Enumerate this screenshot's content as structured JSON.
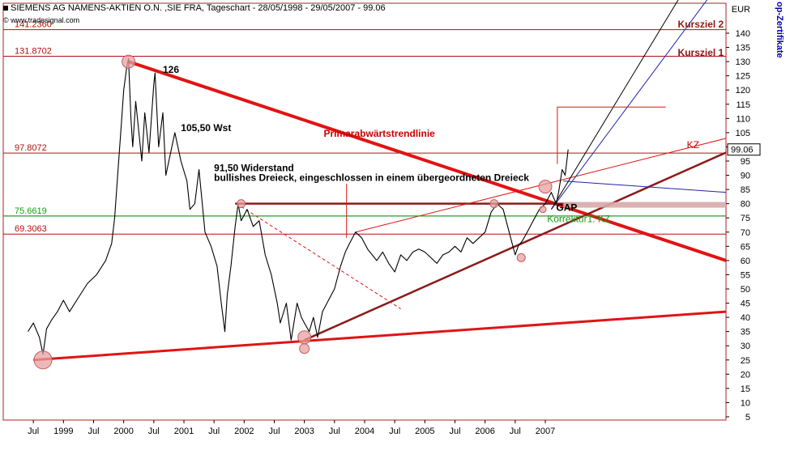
{
  "header": {
    "title": "SIEMENS AG NAMENS-AKTIEN O.N. ,SIE FRA, Tageschart - 28/05/1998 - 29/05/2007 - 99.06",
    "watermark": "© www.tradesignal.com"
  },
  "side_banner": "op-Zertifikate",
  "colors": {
    "price": "#000000",
    "trendline": "#e01414",
    "support": "#8b1a1a",
    "level": "#b01010",
    "green_level": "#1a9c1a",
    "blue_fan": "#2222aa",
    "grid": "#f2caca",
    "volume": "#cccccc"
  },
  "chart_data": {
    "type": "line",
    "title": "SIEMENS AG NAMENS-AKTIEN O.N. ,SIE FRA, Tageschart - 28/05/1998 - 29/05/2007 - 99.06",
    "ylabel": "EUR",
    "ylim": [
      5,
      145
    ],
    "y_scale": "linear",
    "y_ticks": [
      5,
      10,
      15,
      20,
      25,
      30,
      35,
      40,
      45,
      50,
      55,
      60,
      65,
      70,
      75,
      80,
      85,
      90,
      95,
      100,
      105,
      110,
      115,
      120,
      125,
      130,
      135,
      140
    ],
    "x_ticks": [
      "Jul",
      "1999",
      "Jul",
      "2000",
      "Jul",
      "2001",
      "Jul",
      "2002",
      "Jul",
      "2003",
      "Jul",
      "2004",
      "Jul",
      "2005",
      "Jul",
      "2006",
      "Jul",
      "2007"
    ],
    "last_price": "99.06",
    "price_series": [
      [
        1998.41,
        35
      ],
      [
        1998.5,
        38
      ],
      [
        1998.6,
        33
      ],
      [
        1998.66,
        27
      ],
      [
        1998.72,
        36
      ],
      [
        1998.8,
        39
      ],
      [
        1998.9,
        42
      ],
      [
        1999.0,
        46
      ],
      [
        1999.1,
        42
      ],
      [
        1999.25,
        47
      ],
      [
        1999.4,
        52
      ],
      [
        1999.55,
        55
      ],
      [
        1999.7,
        60
      ],
      [
        1999.8,
        66
      ],
      [
        1999.85,
        75
      ],
      [
        1999.9,
        90
      ],
      [
        1999.95,
        105
      ],
      [
        2000.0,
        120
      ],
      [
        2000.05,
        128
      ],
      [
        2000.08,
        131
      ],
      [
        2000.12,
        110
      ],
      [
        2000.15,
        100
      ],
      [
        2000.2,
        116
      ],
      [
        2000.3,
        95
      ],
      [
        2000.35,
        112
      ],
      [
        2000.42,
        98
      ],
      [
        2000.5,
        122
      ],
      [
        2000.52,
        126
      ],
      [
        2000.58,
        100
      ],
      [
        2000.65,
        112
      ],
      [
        2000.7,
        90
      ],
      [
        2000.78,
        98
      ],
      [
        2000.85,
        105
      ],
      [
        2000.95,
        95
      ],
      [
        2001.05,
        88
      ],
      [
        2001.1,
        78
      ],
      [
        2001.18,
        80
      ],
      [
        2001.25,
        92
      ],
      [
        2001.35,
        70
      ],
      [
        2001.45,
        65
      ],
      [
        2001.55,
        58
      ],
      [
        2001.62,
        45
      ],
      [
        2001.68,
        35
      ],
      [
        2001.72,
        48
      ],
      [
        2001.78,
        58
      ],
      [
        2001.85,
        72
      ],
      [
        2001.9,
        80
      ],
      [
        2001.95,
        74
      ],
      [
        2002.05,
        78
      ],
      [
        2002.15,
        72
      ],
      [
        2002.25,
        74
      ],
      [
        2002.35,
        62
      ],
      [
        2002.45,
        55
      ],
      [
        2002.55,
        45
      ],
      [
        2002.6,
        38
      ],
      [
        2002.7,
        45
      ],
      [
        2002.78,
        32
      ],
      [
        2002.88,
        45
      ],
      [
        2002.95,
        40
      ],
      [
        2003.0,
        38
      ],
      [
        2003.08,
        35
      ],
      [
        2003.15,
        40
      ],
      [
        2003.22,
        33
      ],
      [
        2003.3,
        42
      ],
      [
        2003.4,
        46
      ],
      [
        2003.5,
        50
      ],
      [
        2003.6,
        58
      ],
      [
        2003.68,
        63
      ],
      [
        2003.75,
        66
      ],
      [
        2003.85,
        70
      ],
      [
        2003.95,
        68
      ],
      [
        2004.05,
        64
      ],
      [
        2004.2,
        60
      ],
      [
        2004.3,
        63
      ],
      [
        2004.4,
        59
      ],
      [
        2004.5,
        56
      ],
      [
        2004.6,
        62
      ],
      [
        2004.7,
        60
      ],
      [
        2004.8,
        63
      ],
      [
        2004.9,
        64
      ],
      [
        2005.0,
        63
      ],
      [
        2005.1,
        61
      ],
      [
        2005.2,
        59
      ],
      [
        2005.3,
        62
      ],
      [
        2005.4,
        63
      ],
      [
        2005.5,
        65
      ],
      [
        2005.6,
        63
      ],
      [
        2005.7,
        68
      ],
      [
        2005.8,
        66
      ],
      [
        2005.9,
        68
      ],
      [
        2006.0,
        70
      ],
      [
        2006.1,
        77
      ],
      [
        2006.2,
        80
      ],
      [
        2006.3,
        78
      ],
      [
        2006.4,
        70
      ],
      [
        2006.5,
        62
      ],
      [
        2006.55,
        65
      ],
      [
        2006.62,
        67
      ],
      [
        2006.7,
        70
      ],
      [
        2006.8,
        74
      ],
      [
        2006.9,
        78
      ],
      [
        2007.0,
        80
      ],
      [
        2007.1,
        84
      ],
      [
        2007.18,
        80
      ],
      [
        2007.22,
        84
      ],
      [
        2007.28,
        92
      ],
      [
        2007.33,
        90
      ],
      [
        2007.38,
        99.06
      ]
    ],
    "lines": [
      {
        "name": "Primarabwärtstrendlinie",
        "color": "#e01414",
        "width": 4,
        "points": [
          [
            2000.08,
            130
          ],
          [
            2010.0,
            60
          ]
        ]
      },
      {
        "name": "Lower support",
        "color": "#e01414",
        "width": 3,
        "points": [
          [
            1998.5,
            25
          ],
          [
            2010.0,
            42
          ]
        ]
      },
      {
        "name": "Rising support",
        "color": "#8b1a1a",
        "width": 2.5,
        "points": [
          [
            2003.0,
            32
          ],
          [
            2010.0,
            98
          ]
        ]
      },
      {
        "name": "Dreieck top",
        "color": "#8b1a1a",
        "width": 2.5,
        "points": [
          [
            2001.85,
            80
          ],
          [
            2007.5,
            80
          ]
        ]
      },
      {
        "name": "Channel upper",
        "color": "#e01414",
        "width": 1,
        "points": [
          [
            2003.85,
            70
          ],
          [
            2010.0,
            103
          ]
        ]
      },
      {
        "name": "Blue fan 1",
        "color": "#2222aa",
        "width": 1,
        "points": [
          [
            2007.3,
            88
          ],
          [
            2010.0,
            84
          ]
        ]
      },
      {
        "name": "Blue fan 2",
        "color": "#2222aa",
        "width": 1,
        "points": [
          [
            2007.1,
            78
          ],
          [
            2009.8,
            155
          ]
        ]
      },
      {
        "name": "Black fan",
        "color": "#000000",
        "width": 1,
        "points": [
          [
            2007.1,
            78
          ],
          [
            2009.3,
            155
          ]
        ]
      },
      {
        "name": "Dashed downtrend",
        "color": "#e01414",
        "width": 1,
        "dash": true,
        "points": [
          [
            2001.95,
            79
          ],
          [
            2004.6,
            43
          ]
        ]
      },
      {
        "name": "Target bracket",
        "color": "#e01414",
        "width": 1,
        "points": [
          [
            2007.2,
            94
          ],
          [
            2007.2,
            114
          ],
          [
            2009.0,
            114
          ]
        ]
      },
      {
        "name": "Vertical marker",
        "color": "#e01414",
        "width": 1,
        "points": [
          [
            2003.7,
            68
          ],
          [
            2003.7,
            87
          ]
        ]
      },
      {
        "name": "Green level",
        "color": "#1a9c1a",
        "width": 1,
        "points": [
          [
            1998.0,
            75.6619
          ],
          [
            2010.0,
            75.6619
          ]
        ]
      }
    ],
    "horizontal_levels": [
      {
        "label": "141.2360",
        "value": 141.236
      },
      {
        "label": "131.8702",
        "value": 131.8702
      },
      {
        "label": "97.8072",
        "value": 97.8072
      },
      {
        "label": "75.6619",
        "value": 75.6619
      },
      {
        "label": "69.3063",
        "value": 69.3063
      }
    ],
    "markers": [
      {
        "x": 1998.66,
        "y": 25,
        "r": 11
      },
      {
        "x": 2000.08,
        "y": 130,
        "r": 8
      },
      {
        "x": 2001.95,
        "y": 80,
        "r": 5
      },
      {
        "x": 2003.0,
        "y": 33,
        "r": 8
      },
      {
        "x": 2003.0,
        "y": 29,
        "r": 6
      },
      {
        "x": 2006.15,
        "y": 80,
        "r": 5
      },
      {
        "x": 2006.6,
        "y": 61,
        "r": 5
      },
      {
        "x": 2007.0,
        "y": 86,
        "r": 8
      },
      {
        "x": 2006.96,
        "y": 78,
        "r": 4
      }
    ],
    "annotations": [
      {
        "text": "126",
        "x": 2000.65,
        "y": 126,
        "color": "#000000",
        "bold": true
      },
      {
        "text": "105,50 Wst",
        "x": 2000.95,
        "y": 105.5,
        "color": "#000000",
        "bold": true
      },
      {
        "text": "91,50 Widerstand",
        "x": 2001.5,
        "y": 91.5,
        "color": "#000000",
        "bold": true
      },
      {
        "text": "bullishes Dreieck, eingeschlossen in einem übergeordneten Dreieck",
        "x": 2001.5,
        "y": 88,
        "color": "#000000",
        "bold": true
      },
      {
        "text": "Primarabwärtstrendlinie",
        "x": 2003.32,
        "y": 103.5,
        "color": "#cc0000",
        "bold": true
      },
      {
        "text": "Kursziel 2",
        "x": 2009.2,
        "y": 142,
        "color": "#8b1a1a",
        "bold": true
      },
      {
        "text": "Kursziel 1",
        "x": 2009.2,
        "y": 132,
        "color": "#8b1a1a",
        "bold": true
      },
      {
        "text": "KZ",
        "x": 2009.35,
        "y": 99.5,
        "color": "#cc0000",
        "bold": false
      },
      {
        "text": "GAP",
        "x": 2007.18,
        "y": 77.5,
        "color": "#000000",
        "bold": true
      },
      {
        "text": "Korrektur1. KZ",
        "x": 2007.03,
        "y": 73.5,
        "color": "#1a9c1a",
        "bold": false
      }
    ]
  }
}
